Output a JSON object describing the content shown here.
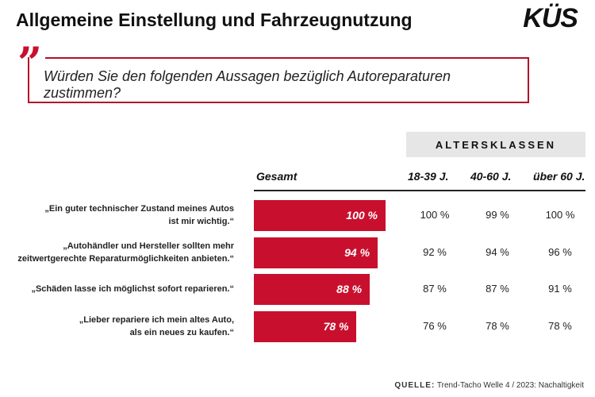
{
  "header": {
    "title": "Allgemeine Einstellung und Fahrzeugnutzung",
    "logo": "KÜS"
  },
  "question": {
    "quote_mark": "”",
    "text": "Würden Sie den folgenden Aussagen bezüglich Autoreparaturen zustimmen?"
  },
  "chart_data": {
    "type": "bar",
    "orientation": "horizontal",
    "title": "",
    "categories": [
      [
        "„Ein guter technischer Zustand meines Autos",
        "ist mir wichtig.“"
      ],
      [
        "„Autohändler und Hersteller sollten mehr",
        "zeitwertgerechte Reparaturmöglichkeiten anbieten.“"
      ],
      [
        "„Schäden lasse ich möglichst sofort reparieren.“"
      ],
      [
        "„Lieber repariere ich mein altes Auto,",
        "als ein neues zu kaufen.“"
      ]
    ],
    "total_label": "Gesamt",
    "values": [
      100,
      94,
      88,
      78
    ],
    "value_labels": [
      "100 %",
      "94 %",
      "88 %",
      "78 %"
    ],
    "xlim": [
      0,
      100
    ],
    "bar_color": "#c8102e",
    "age_group_header": "ALTERSKLASSEN",
    "age_groups": [
      {
        "name": "18-39 J.",
        "values": [
          100,
          92,
          87,
          76
        ],
        "labels": [
          "100 %",
          "92 %",
          "87 %",
          "76 %"
        ]
      },
      {
        "name": "40-60 J.",
        "values": [
          99,
          94,
          87,
          78
        ],
        "labels": [
          "99 %",
          "94 %",
          "87 %",
          "78 %"
        ]
      },
      {
        "name": "über 60 J.",
        "values": [
          100,
          96,
          91,
          78
        ],
        "labels": [
          "100 %",
          "96 %",
          "91 %",
          "78 %"
        ]
      }
    ]
  },
  "source": {
    "label": "QUELLE:",
    "text": "Trend-Tacho Welle 4 / 2023: Nachaltigkeit"
  }
}
